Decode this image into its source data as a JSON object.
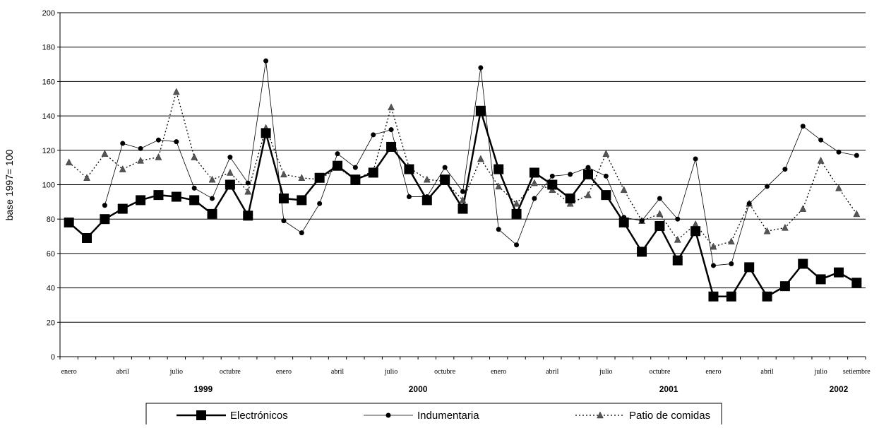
{
  "chart_data": {
    "type": "line",
    "title": "",
    "xlabel": "",
    "ylabel": "base 1997= 100",
    "ylim": [
      0,
      200
    ],
    "yticks": [
      0,
      20,
      40,
      60,
      80,
      100,
      120,
      140,
      160,
      180,
      200
    ],
    "grid": true,
    "legend_position": "bottom",
    "x_tick_labels": [
      {
        "index": 0,
        "label": "enero"
      },
      {
        "index": 3,
        "label": "abril"
      },
      {
        "index": 6,
        "label": "julio"
      },
      {
        "index": 9,
        "label": "octubre"
      },
      {
        "index": 12,
        "label": "enero"
      },
      {
        "index": 15,
        "label": "abril"
      },
      {
        "index": 18,
        "label": "julio"
      },
      {
        "index": 21,
        "label": "octubre"
      },
      {
        "index": 24,
        "label": "enero"
      },
      {
        "index": 27,
        "label": "abril"
      },
      {
        "index": 30,
        "label": "julio"
      },
      {
        "index": 33,
        "label": "octubre"
      },
      {
        "index": 36,
        "label": "enero"
      },
      {
        "index": 39,
        "label": "abril"
      },
      {
        "index": 42,
        "label": "julio"
      },
      {
        "index": 44,
        "label": "setiembre"
      }
    ],
    "year_labels": [
      {
        "center_index": 7.5,
        "label": "1999"
      },
      {
        "center_index": 19.5,
        "label": "2000"
      },
      {
        "center_index": 33.5,
        "label": "2001"
      },
      {
        "center_index": 43,
        "label": "2002"
      }
    ],
    "series": [
      {
        "name": "Electrónicos",
        "color": "#000000",
        "style": "thick-solid-square",
        "values": [
          78,
          69,
          80,
          86,
          91,
          94,
          93,
          91,
          83,
          100,
          82,
          130,
          92,
          91,
          104,
          111,
          103,
          107,
          122,
          109,
          91,
          103,
          86,
          143,
          109,
          83,
          107,
          100,
          92,
          106,
          94,
          78,
          61,
          76,
          56,
          73,
          35,
          35,
          52,
          35,
          41,
          54,
          45,
          49,
          43
        ]
      },
      {
        "name": "Indumentaria",
        "color": "#000000",
        "style": "thin-solid-circle",
        "values": [
          null,
          null,
          88,
          124,
          121,
          126,
          125,
          98,
          92,
          116,
          101,
          172,
          79,
          72,
          89,
          118,
          110,
          129,
          132,
          93,
          93,
          110,
          96,
          168,
          74,
          65,
          92,
          105,
          106,
          110,
          105,
          81,
          79,
          92,
          80,
          115,
          53,
          54,
          89,
          99,
          109,
          134,
          126,
          119,
          117
        ]
      },
      {
        "name": "Patio de comidas",
        "color": "#404040",
        "style": "dotted-triangle",
        "values": [
          113,
          104,
          118,
          109,
          114,
          116,
          154,
          116,
          103,
          107,
          96,
          133,
          106,
          104,
          103,
          110,
          103,
          108,
          145,
          110,
          103,
          102,
          91,
          115,
          99,
          89,
          101,
          97,
          89,
          94,
          118,
          97,
          79,
          83,
          68,
          77,
          64,
          67,
          89,
          73,
          75,
          86,
          114,
          98,
          83
        ]
      }
    ]
  }
}
